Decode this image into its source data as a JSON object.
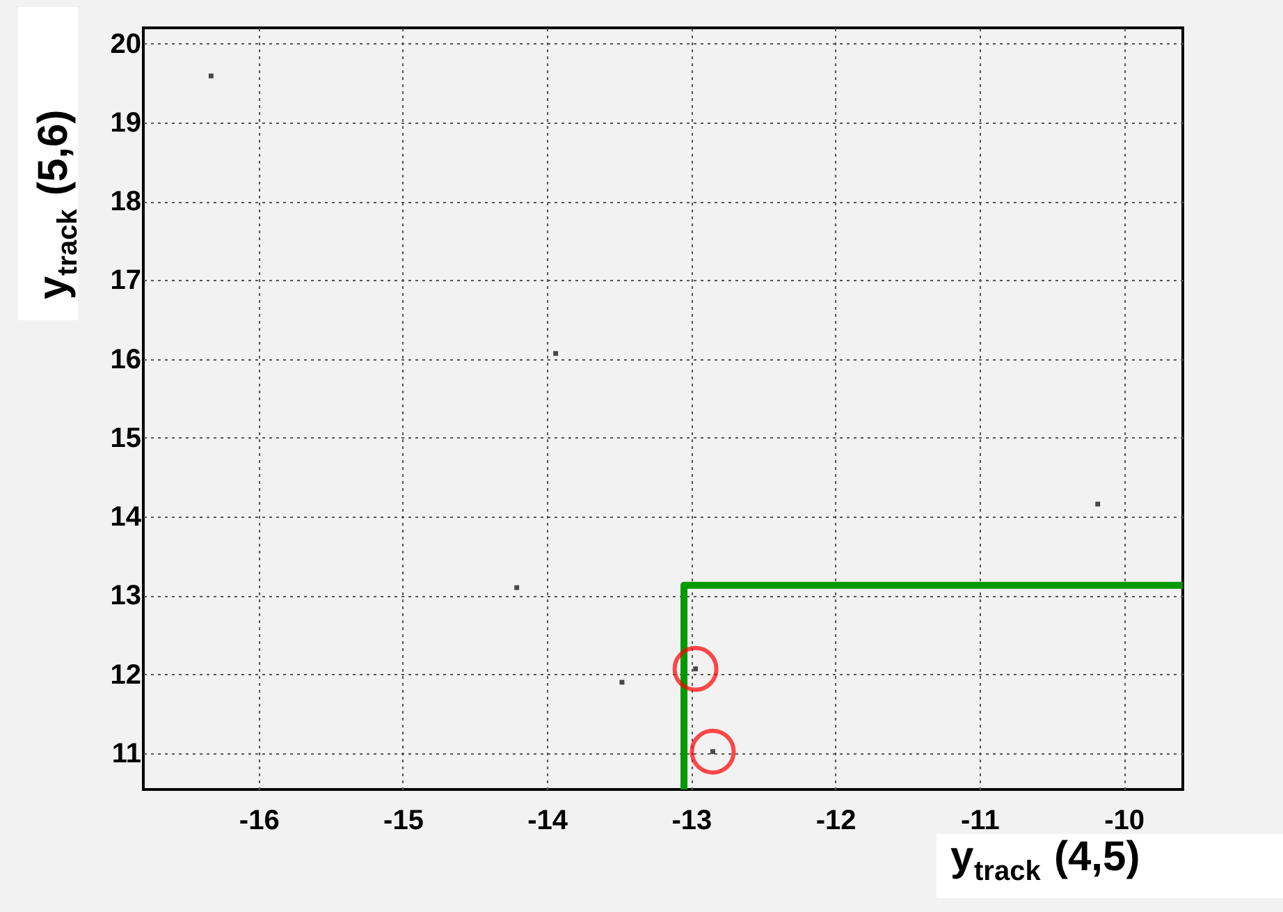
{
  "chart_data": {
    "type": "scatter",
    "xlabel": "y$_{track}$ (4,5)",
    "ylabel": "y$_{track}$ (5,6)",
    "xlim": [
      -16.8,
      -9.59
    ],
    "ylim": [
      10.54,
      20.2
    ],
    "xticks": [
      -16,
      -15,
      -14,
      -13,
      -12,
      -11,
      -10
    ],
    "yticks": [
      11,
      12,
      13,
      14,
      15,
      16,
      17,
      18,
      19,
      20
    ],
    "grid": true,
    "series": [
      {
        "marker": "square",
        "color": "#000000",
        "x": [
          -16.33,
          -13.94,
          -14.21,
          -13.48,
          -12.97,
          -12.85,
          -10.18
        ],
        "values": [
          19.59,
          16.07,
          13.1,
          11.9,
          12.07,
          11.02,
          14.16
        ]
      },
      {
        "type": "line",
        "line_style": "solid",
        "color": "#009900",
        "x": [
          -13.05,
          -13.05,
          -9.59
        ],
        "values": [
          10.54,
          13.13,
          13.13
        ]
      },
      {
        "marker": "circle",
        "color": "#ff0000",
        "x": [
          -12.97,
          -12.85
        ],
        "values": [
          12.07,
          11.02
        ]
      }
    ]
  }
}
